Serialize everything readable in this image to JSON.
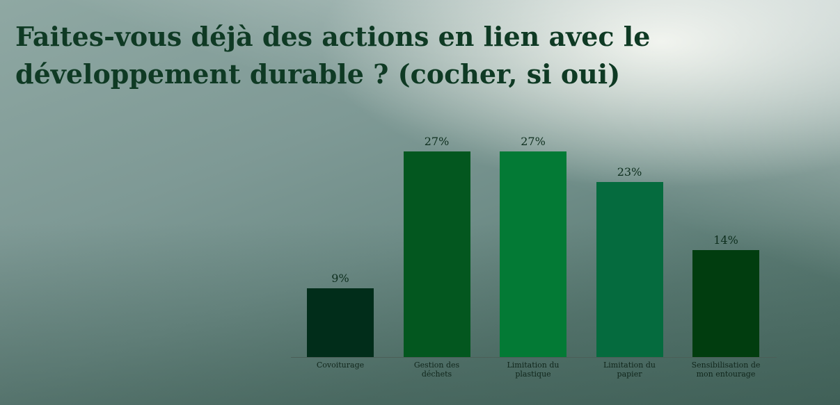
{
  "chart_data": {
    "type": "bar",
    "title": "Faites-vous déjà des actions en lien avec le développement durable ? (cocher, si oui)",
    "categories": [
      "Covoiturage",
      "Gestion des déchets",
      "Limitation du plastique",
      "Limitation du papier",
      "Sensibilisation de mon entourage"
    ],
    "values": [
      9,
      27,
      27,
      23,
      14
    ],
    "value_labels": [
      "9%",
      "27%",
      "27%",
      "23%",
      "14%"
    ],
    "colors": [
      "#012d1a",
      "#03571f",
      "#037a35",
      "#056b3e",
      "#013d0f"
    ]
  }
}
